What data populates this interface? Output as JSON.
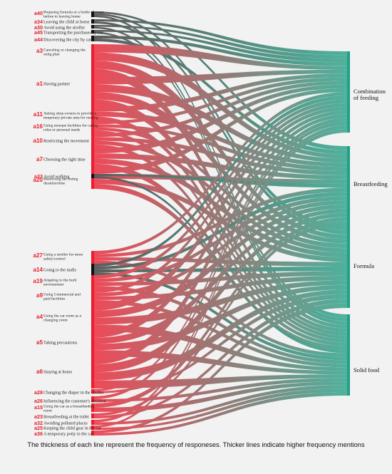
{
  "sources": [
    {
      "code": "a40",
      "label": [
        "Preparing formula or a bottle of water",
        "before to leaving home"
      ]
    },
    {
      "code": "a34",
      "label": [
        "Leaving the child at home"
      ]
    },
    {
      "code": "a30",
      "label": [
        "Avoid using the stroller"
      ]
    },
    {
      "code": "a45",
      "label": [
        "Transporting the purchases by car"
      ]
    },
    {
      "code": "a44",
      "label": [
        "Discovering the city by car"
      ]
    },
    {
      "code": "a3",
      "label": [
        "Canceling or changing the",
        "outig plan"
      ]
    },
    {
      "code": "a1",
      "label": [
        "Having partner"
      ]
    },
    {
      "code": "a11",
      "label": [
        "Asking shop owners to provide a",
        "temporary private area for nursing"
      ]
    },
    {
      "code": "a16",
      "label": [
        "Using mosque facilities for caring",
        "roles or personal needs"
      ]
    },
    {
      "code": "a10",
      "label": [
        "Restricting the movement"
      ]
    },
    {
      "code": "a7",
      "label": [
        "Choosing the right  time"
      ]
    },
    {
      "code": "a20",
      "label": [
        "Restricting the outing",
        "duration/time"
      ]
    },
    {
      "code": "a33",
      "label": [
        "Avoid walking"
      ]
    },
    {
      "code": "a27",
      "label": [
        "Using a stroller for more",
        "safety/control"
      ]
    },
    {
      "code": "a14",
      "label": [
        "Going to the malls"
      ]
    },
    {
      "code": "a19",
      "label": [
        "Adapting to the built",
        "environment"
      ]
    },
    {
      "code": "a9",
      "label": [
        "Using Commercial and",
        "paid facilities"
      ]
    },
    {
      "code": "a4",
      "label": [
        "Using the car room as a",
        "changing room"
      ]
    },
    {
      "code": "a5",
      "label": [
        "Taking precautions"
      ]
    },
    {
      "code": "a6",
      "label": [
        "Staying at home"
      ]
    },
    {
      "code": "a28",
      "label": [
        "Changing the diaper in the stroller"
      ]
    },
    {
      "code": "a26",
      "label": [
        "Influencing the customer's decision"
      ]
    },
    {
      "code": "a15",
      "label": [
        "Using the car as a breastfeeding",
        "room"
      ]
    },
    {
      "code": "a23",
      "label": [
        "Breastfeeding at the toilet"
      ]
    },
    {
      "code": "a32",
      "label": [
        "Avoiding polluted places"
      ]
    },
    {
      "code": "a25",
      "label": [
        "Keeping the child gear in the car"
      ]
    },
    {
      "code": "a36",
      "label": [
        "A temporary potty in the car"
      ]
    }
  ],
  "targets": [
    {
      "label": [
        "Combination",
        "of feeding"
      ]
    },
    {
      "label": [
        "Breastfeeding"
      ]
    },
    {
      "label": [
        "Formula"
      ]
    },
    {
      "label": [
        "Solid food"
      ]
    }
  ],
  "links": [
    [
      0,
      1
    ],
    [
      0,
      2
    ],
    [
      0,
      3
    ],
    [
      1,
      0
    ],
    [
      1,
      2
    ],
    [
      2,
      0
    ],
    [
      2,
      3
    ],
    [
      3,
      0
    ],
    [
      3,
      3
    ],
    [
      4,
      0
    ],
    [
      4,
      1
    ],
    [
      5,
      0
    ],
    [
      5,
      1
    ],
    [
      5,
      2
    ],
    [
      5,
      3
    ],
    [
      6,
      0
    ],
    [
      6,
      1
    ],
    [
      6,
      2
    ],
    [
      6,
      3
    ],
    [
      7,
      0
    ],
    [
      7,
      1
    ],
    [
      7,
      3
    ],
    [
      8,
      0
    ],
    [
      8,
      1
    ],
    [
      8,
      2
    ],
    [
      8,
      3
    ],
    [
      9,
      0
    ],
    [
      9,
      1
    ],
    [
      9,
      2
    ],
    [
      9,
      3
    ],
    [
      10,
      0
    ],
    [
      10,
      1
    ],
    [
      10,
      2
    ],
    [
      10,
      3
    ],
    [
      11,
      0
    ],
    [
      11,
      1
    ],
    [
      11,
      2
    ],
    [
      11,
      3
    ],
    [
      12,
      1
    ],
    [
      12,
      3
    ],
    [
      13,
      0
    ],
    [
      13,
      1
    ],
    [
      13,
      2
    ],
    [
      13,
      3
    ],
    [
      14,
      0
    ],
    [
      14,
      1
    ],
    [
      14,
      2
    ],
    [
      14,
      3
    ],
    [
      15,
      0
    ],
    [
      15,
      1
    ],
    [
      15,
      2
    ],
    [
      15,
      3
    ],
    [
      16,
      0
    ],
    [
      16,
      1
    ],
    [
      16,
      2
    ],
    [
      16,
      3
    ],
    [
      17,
      0
    ],
    [
      17,
      1
    ],
    [
      17,
      2
    ],
    [
      17,
      3
    ],
    [
      18,
      0
    ],
    [
      18,
      1
    ],
    [
      18,
      2
    ],
    [
      18,
      3
    ],
    [
      19,
      0
    ],
    [
      19,
      1
    ],
    [
      19,
      2
    ],
    [
      19,
      3
    ],
    [
      20,
      0
    ],
    [
      20,
      2
    ],
    [
      21,
      0
    ],
    [
      21,
      3
    ],
    [
      22,
      1
    ],
    [
      22,
      3
    ],
    [
      23,
      1
    ],
    [
      23,
      2
    ],
    [
      24,
      0
    ],
    [
      24,
      3
    ],
    [
      25,
      0
    ],
    [
      25,
      3
    ],
    [
      26,
      2
    ],
    [
      26,
      3
    ]
  ],
  "colors": {
    "source": "#ee1c2e",
    "target": "#22a085",
    "mid": "#7a5a55",
    "background": "#f2f2f2"
  },
  "caption": "The thickness of each line represent the frequency of responeses. Thicker lines indicate higher frequency mentions"
}
